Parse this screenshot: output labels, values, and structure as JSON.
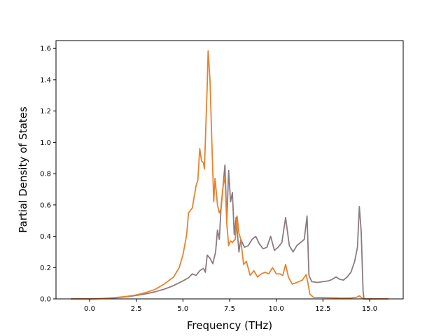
{
  "chart_data": {
    "type": "line",
    "title": "",
    "xlabel": "Frequency (THz)",
    "ylabel": "Partial Density of States",
    "xlim": [
      -1.8,
      16.8
    ],
    "ylim": [
      0.0,
      1.65
    ],
    "xticks": [
      0.0,
      2.5,
      5.0,
      7.5,
      10.0,
      12.5,
      15.0
    ],
    "xtick_labels": [
      "0.0",
      "2.5",
      "5.0",
      "7.5",
      "10.0",
      "12.5",
      "15.0"
    ],
    "yticks": [
      0.0,
      0.2,
      0.4,
      0.6,
      0.8,
      1.0,
      1.2,
      1.4,
      1.6
    ],
    "ytick_labels": [
      "0.0",
      "0.2",
      "0.4",
      "0.6",
      "0.8",
      "1.0",
      "1.2",
      "1.4",
      "1.6"
    ],
    "grid": false,
    "legend": "none",
    "series": [
      {
        "color": "#8c7b80",
        "points": [
          [
            -1.0,
            0.0
          ],
          [
            0.0,
            0.0
          ],
          [
            0.5,
            0.001
          ],
          [
            1.0,
            0.004
          ],
          [
            1.5,
            0.008
          ],
          [
            2.0,
            0.014
          ],
          [
            2.5,
            0.022
          ],
          [
            3.0,
            0.032
          ],
          [
            3.5,
            0.045
          ],
          [
            4.0,
            0.062
          ],
          [
            4.5,
            0.085
          ],
          [
            5.0,
            0.115
          ],
          [
            5.3,
            0.135
          ],
          [
            5.5,
            0.16
          ],
          [
            5.7,
            0.15
          ],
          [
            5.9,
            0.18
          ],
          [
            6.1,
            0.195
          ],
          [
            6.2,
            0.17
          ],
          [
            6.3,
            0.28
          ],
          [
            6.45,
            0.26
          ],
          [
            6.6,
            0.225
          ],
          [
            6.75,
            0.3
          ],
          [
            6.85,
            0.44
          ],
          [
            6.95,
            0.38
          ],
          [
            7.05,
            0.6
          ],
          [
            7.15,
            0.72
          ],
          [
            7.25,
            0.855
          ],
          [
            7.35,
            0.5
          ],
          [
            7.45,
            0.82
          ],
          [
            7.55,
            0.62
          ],
          [
            7.65,
            0.68
          ],
          [
            7.75,
            0.41
          ],
          [
            7.85,
            0.52
          ],
          [
            8.0,
            0.3
          ],
          [
            8.1,
            0.38
          ],
          [
            8.3,
            0.33
          ],
          [
            8.5,
            0.34
          ],
          [
            8.7,
            0.38
          ],
          [
            8.9,
            0.4
          ],
          [
            9.1,
            0.35
          ],
          [
            9.3,
            0.32
          ],
          [
            9.5,
            0.33
          ],
          [
            9.7,
            0.4
          ],
          [
            9.9,
            0.31
          ],
          [
            10.1,
            0.33
          ],
          [
            10.3,
            0.36
          ],
          [
            10.5,
            0.52
          ],
          [
            10.7,
            0.34
          ],
          [
            10.9,
            0.3
          ],
          [
            11.1,
            0.34
          ],
          [
            11.3,
            0.36
          ],
          [
            11.5,
            0.38
          ],
          [
            11.65,
            0.53
          ],
          [
            11.75,
            0.15
          ],
          [
            11.9,
            0.11
          ],
          [
            12.2,
            0.105
          ],
          [
            12.5,
            0.11
          ],
          [
            12.8,
            0.115
          ],
          [
            13.0,
            0.125
          ],
          [
            13.2,
            0.14
          ],
          [
            13.4,
            0.125
          ],
          [
            13.6,
            0.12
          ],
          [
            13.8,
            0.14
          ],
          [
            14.0,
            0.17
          ],
          [
            14.2,
            0.24
          ],
          [
            14.35,
            0.33
          ],
          [
            14.45,
            0.59
          ],
          [
            14.55,
            0.43
          ],
          [
            14.65,
            0.05
          ],
          [
            14.7,
            0.0
          ],
          [
            16.0,
            0.0
          ]
        ]
      },
      {
        "color": "#e8822e",
        "points": [
          [
            -1.0,
            0.0
          ],
          [
            0.0,
            0.0
          ],
          [
            0.5,
            0.002
          ],
          [
            1.0,
            0.005
          ],
          [
            1.5,
            0.01
          ],
          [
            2.0,
            0.016
          ],
          [
            2.5,
            0.025
          ],
          [
            3.0,
            0.04
          ],
          [
            3.5,
            0.06
          ],
          [
            4.0,
            0.095
          ],
          [
            4.5,
            0.14
          ],
          [
            4.8,
            0.2
          ],
          [
            5.0,
            0.28
          ],
          [
            5.2,
            0.41
          ],
          [
            5.3,
            0.55
          ],
          [
            5.5,
            0.58
          ],
          [
            5.7,
            0.72
          ],
          [
            5.8,
            0.76
          ],
          [
            5.9,
            0.96
          ],
          [
            6.0,
            0.88
          ],
          [
            6.1,
            0.87
          ],
          [
            6.15,
            0.83
          ],
          [
            6.2,
            1.0
          ],
          [
            6.3,
            1.36
          ],
          [
            6.35,
            1.585
          ],
          [
            6.45,
            1.4
          ],
          [
            6.55,
            1.0
          ],
          [
            6.65,
            0.62
          ],
          [
            6.72,
            0.77
          ],
          [
            6.85,
            0.6
          ],
          [
            6.95,
            0.55
          ],
          [
            7.05,
            0.58
          ],
          [
            7.15,
            0.72
          ],
          [
            7.25,
            0.78
          ],
          [
            7.35,
            0.48
          ],
          [
            7.45,
            0.34
          ],
          [
            7.55,
            0.37
          ],
          [
            7.65,
            0.36
          ],
          [
            7.8,
            0.38
          ],
          [
            7.9,
            0.53
          ],
          [
            8.0,
            0.42
          ],
          [
            8.1,
            0.38
          ],
          [
            8.25,
            0.22
          ],
          [
            8.4,
            0.24
          ],
          [
            8.6,
            0.15
          ],
          [
            8.8,
            0.18
          ],
          [
            9.0,
            0.14
          ],
          [
            9.2,
            0.16
          ],
          [
            9.4,
            0.17
          ],
          [
            9.6,
            0.16
          ],
          [
            9.8,
            0.2
          ],
          [
            10.0,
            0.16
          ],
          [
            10.2,
            0.16
          ],
          [
            10.35,
            0.15
          ],
          [
            10.5,
            0.22
          ],
          [
            10.65,
            0.14
          ],
          [
            10.85,
            0.095
          ],
          [
            11.0,
            0.1
          ],
          [
            11.2,
            0.11
          ],
          [
            11.4,
            0.12
          ],
          [
            11.6,
            0.155
          ],
          [
            11.7,
            0.1
          ],
          [
            11.8,
            0.03
          ],
          [
            12.0,
            0.01
          ],
          [
            12.5,
            0.008
          ],
          [
            13.0,
            0.007
          ],
          [
            13.5,
            0.005
          ],
          [
            14.0,
            0.006
          ],
          [
            14.3,
            0.01
          ],
          [
            14.45,
            0.02
          ],
          [
            14.6,
            0.005
          ],
          [
            14.7,
            0.0
          ],
          [
            16.0,
            0.0
          ]
        ]
      }
    ]
  }
}
